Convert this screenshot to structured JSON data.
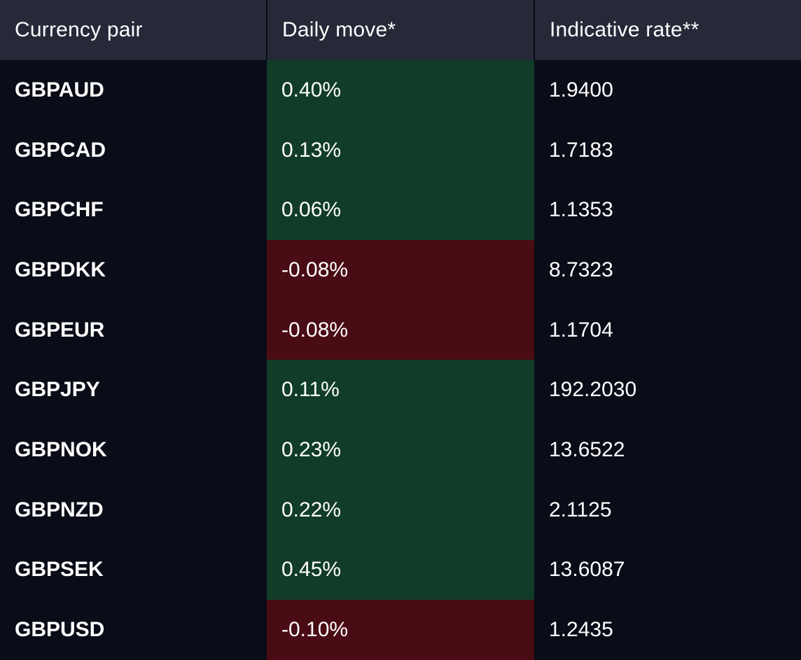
{
  "table": {
    "headers": {
      "pair": "Currency pair",
      "move": "Daily move*",
      "rate": "Indicative rate**"
    },
    "rows": [
      {
        "pair": "GBPAUD",
        "move": "0.40%",
        "rate": "1.9400",
        "direction": "up"
      },
      {
        "pair": "GBPCAD",
        "move": "0.13%",
        "rate": "1.7183",
        "direction": "up"
      },
      {
        "pair": "GBPCHF",
        "move": "0.06%",
        "rate": "1.1353",
        "direction": "up"
      },
      {
        "pair": "GBPDKK",
        "move": "-0.08%",
        "rate": "8.7323",
        "direction": "down"
      },
      {
        "pair": "GBPEUR",
        "move": "-0.08%",
        "rate": "1.1704",
        "direction": "down"
      },
      {
        "pair": "GBPJPY",
        "move": "0.11%",
        "rate": "192.2030",
        "direction": "up"
      },
      {
        "pair": "GBPNOK",
        "move": "0.23%",
        "rate": "13.6522",
        "direction": "up"
      },
      {
        "pair": "GBPNZD",
        "move": "0.22%",
        "rate": "2.1125",
        "direction": "up"
      },
      {
        "pair": "GBPSEK",
        "move": "0.45%",
        "rate": "13.6087",
        "direction": "up"
      },
      {
        "pair": "GBPUSD",
        "move": "-0.10%",
        "rate": "1.2435",
        "direction": "down"
      }
    ]
  },
  "colors": {
    "background": "#0a0c17",
    "header_background": "#262938",
    "positive_move": "#113c28",
    "negative_move": "#4a0c14",
    "text": "#ffffff"
  }
}
